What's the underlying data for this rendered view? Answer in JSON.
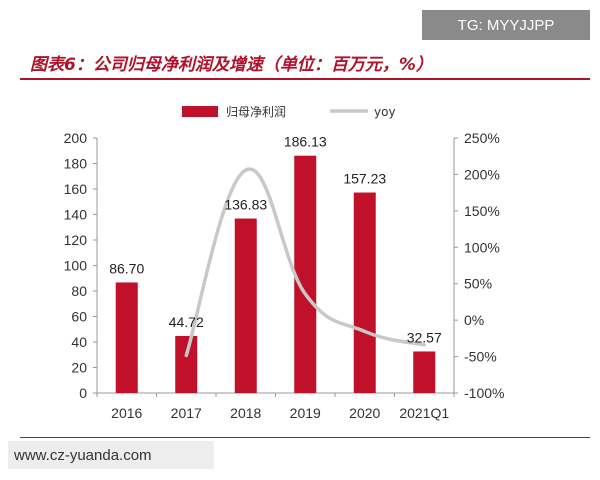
{
  "watermark_top": "TG: MYYJJPP",
  "watermark_bottom": "www.cz-yuanda.com",
  "colors": {
    "bar": "#c0102a",
    "line": "#c8c8c8",
    "title": "#b0122a"
  },
  "chart_data": {
    "type": "bar",
    "title": "图表6：公司归母净利润及增速（单位：百万元，%）",
    "categories": [
      "2016",
      "2017",
      "2018",
      "2019",
      "2020",
      "2021Q1"
    ],
    "series": [
      {
        "name": "归母净利润",
        "type": "bar",
        "axis": "left",
        "values": [
          86.7,
          44.72,
          136.83,
          186.13,
          157.23,
          32.57
        ],
        "labels": [
          "86.70",
          "44.72",
          "136.83",
          "186.13",
          "157.23",
          "32.57"
        ]
      },
      {
        "name": "yoy",
        "type": "line",
        "axis": "right",
        "values": [
          null,
          -48.4,
          206.0,
          36.0,
          -15.5,
          -34.0
        ]
      }
    ],
    "y_left": {
      "min": 0,
      "max": 200,
      "ticks": [
        "0",
        "20",
        "40",
        "60",
        "80",
        "100",
        "120",
        "140",
        "160",
        "180",
        "200"
      ]
    },
    "y_right": {
      "min": -100,
      "max": 250,
      "ticks": [
        "-100%",
        "-50%",
        "0%",
        "50%",
        "100%",
        "150%",
        "200%",
        "250%"
      ]
    },
    "legend": {
      "position": "top"
    },
    "grid": false
  }
}
